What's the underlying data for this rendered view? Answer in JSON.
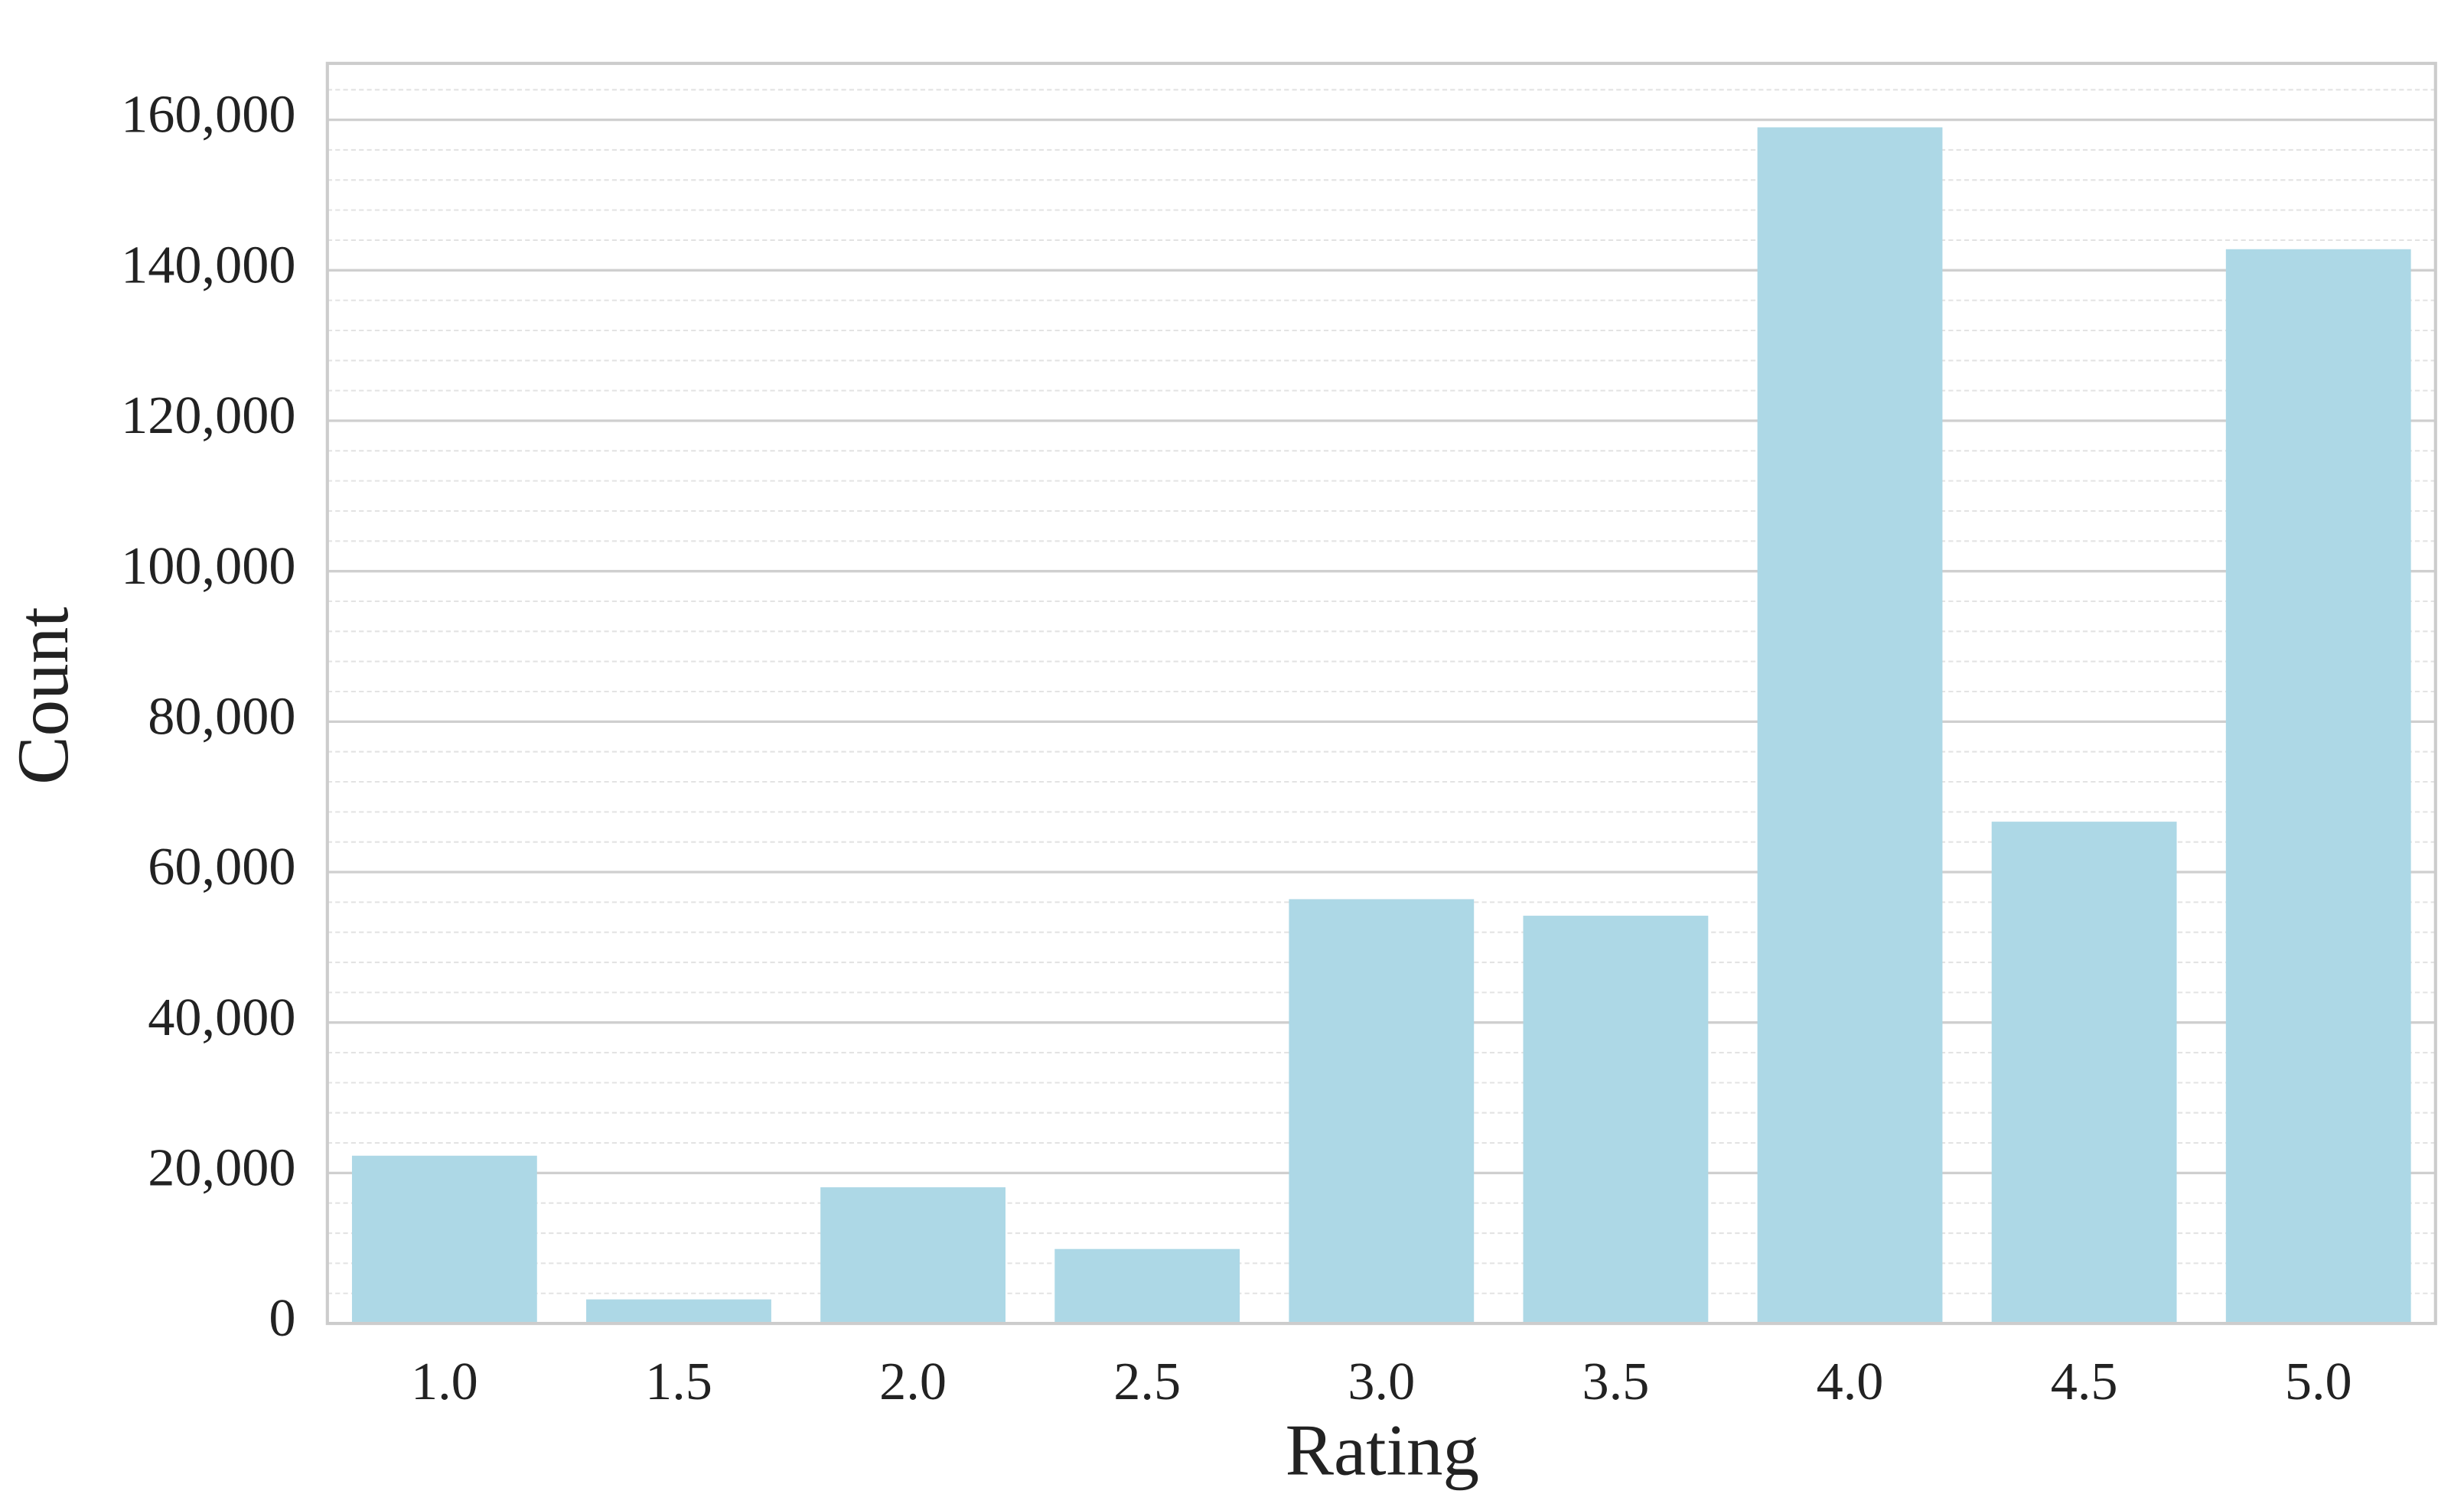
{
  "chart_data": {
    "type": "bar",
    "categories": [
      "1.0",
      "1.5",
      "2.0",
      "2.5",
      "3.0",
      "3.5",
      "4.0",
      "4.5",
      "5.0"
    ],
    "values": [
      22300,
      3200,
      18100,
      9900,
      56400,
      54200,
      159000,
      66700,
      142800
    ],
    "color": "#add8e6",
    "x_label": "Rating",
    "y_label": "Count",
    "ylim": [
      0,
      167500
    ],
    "yticks": [
      0,
      {
        "value": 20000,
        "label": "20,000"
      },
      {
        "value": 40000,
        "label": "40,000"
      },
      {
        "value": 60000,
        "label": "60,000"
      },
      {
        "value": 80000,
        "label": "80,000"
      },
      {
        "value": 100000,
        "label": "100,000"
      },
      {
        "value": 120000,
        "label": "120,000"
      },
      {
        "value": 140000,
        "label": "140,000"
      },
      {
        "value": 160000,
        "label": "160,000"
      }
    ],
    "grid": true,
    "minor_grid_divisions": 5
  }
}
